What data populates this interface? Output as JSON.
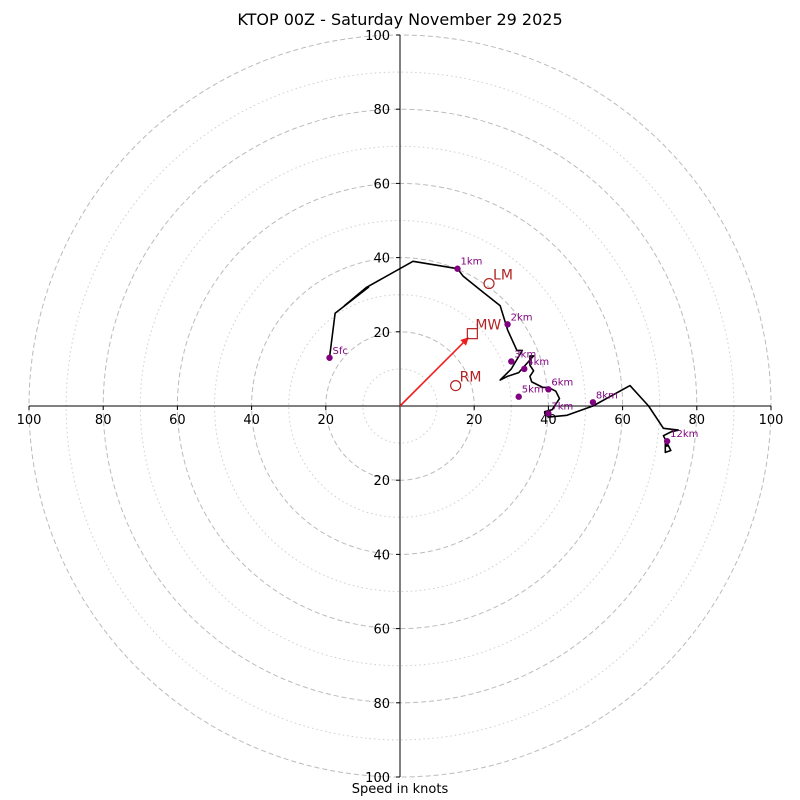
{
  "chart_data": {
    "type": "hodograph",
    "title": "KTOP 00Z - Saturday November 29 2025",
    "xlabel": "Speed in knots",
    "xlim": [
      -100,
      100
    ],
    "ylim": [
      -100,
      100
    ],
    "rings_major": [
      20,
      40,
      60,
      80,
      100
    ],
    "rings_minor": [
      10,
      30,
      50,
      70,
      90
    ],
    "x_ticks": [
      {
        "v": -100,
        "label": "100"
      },
      {
        "v": -80,
        "label": "80"
      },
      {
        "v": -60,
        "label": "60"
      },
      {
        "v": -40,
        "label": "40"
      },
      {
        "v": -20,
        "label": "20"
      },
      {
        "v": 20,
        "label": "20"
      },
      {
        "v": 40,
        "label": "40"
      },
      {
        "v": 60,
        "label": "60"
      },
      {
        "v": 80,
        "label": "80"
      },
      {
        "v": 100,
        "label": "100"
      }
    ],
    "y_ticks": [
      {
        "v": 100,
        "label": "100"
      },
      {
        "v": 80,
        "label": "80"
      },
      {
        "v": 60,
        "label": "60"
      },
      {
        "v": 40,
        "label": "40"
      },
      {
        "v": 20,
        "label": "20"
      },
      {
        "v": -20,
        "label": "20"
      },
      {
        "v": -40,
        "label": "40"
      },
      {
        "v": -60,
        "label": "60"
      },
      {
        "v": -80,
        "label": "80"
      },
      {
        "v": -100,
        "label": "100"
      }
    ],
    "trace": [
      [
        -19,
        13
      ],
      [
        -17.5,
        25
      ],
      [
        -8.5,
        32
      ],
      [
        -15,
        27
      ],
      [
        -9,
        32
      ],
      [
        3.5,
        39
      ],
      [
        15.5,
        37
      ],
      [
        17,
        35
      ],
      [
        22,
        31
      ],
      [
        27,
        27
      ],
      [
        29,
        20.5
      ],
      [
        31.5,
        15
      ],
      [
        33,
        15
      ],
      [
        30,
        10
      ],
      [
        27,
        7
      ],
      [
        29,
        8
      ],
      [
        32,
        9
      ],
      [
        36,
        13.5
      ],
      [
        35,
        13.5
      ],
      [
        35,
        11
      ],
      [
        36,
        9.5
      ],
      [
        35,
        8
      ],
      [
        35.5,
        6.5
      ],
      [
        38.5,
        5
      ],
      [
        40,
        5
      ],
      [
        42,
        4
      ],
      [
        43,
        2
      ],
      [
        41,
        -1
      ],
      [
        39,
        -1.5
      ],
      [
        39,
        -2
      ],
      [
        40,
        -3
      ],
      [
        45,
        -2.5
      ],
      [
        52,
        0
      ],
      [
        62,
        5.5
      ],
      [
        67,
        0
      ],
      [
        71,
        -6
      ],
      [
        75,
        -6.5
      ],
      [
        73,
        -7
      ],
      [
        71,
        -8
      ],
      [
        73,
        -12
      ],
      [
        71.5,
        -12.5
      ],
      [
        71.5,
        -9
      ],
      [
        72,
        -11
      ]
    ],
    "heights": [
      {
        "label": "Sfc",
        "u": -19,
        "v": 13
      },
      {
        "label": "1km",
        "u": 15.5,
        "v": 37
      },
      {
        "label": "2km",
        "u": 29,
        "v": 22
      },
      {
        "label": "3km",
        "u": 30,
        "v": 12
      },
      {
        "label": "4km",
        "u": 33.5,
        "v": 10
      },
      {
        "label": "5km",
        "u": 32,
        "v": 2.5
      },
      {
        "label": "6km",
        "u": 40,
        "v": 4.5
      },
      {
        "label": "7km",
        "u": 40,
        "v": -2
      },
      {
        "label": "8km",
        "u": 52,
        "v": 1
      },
      {
        "label": "12km",
        "u": 72,
        "v": -9.5
      }
    ],
    "storm_motion": {
      "mean_wind": {
        "label": "MW",
        "u": 19.5,
        "v": 19.5
      },
      "left_mover": {
        "label": "LM",
        "u": 24,
        "v": 33
      },
      "right_mover": {
        "label": "RM",
        "u": 15,
        "v": 5.5
      }
    },
    "colors": {
      "trace": "#000000",
      "height_points": "#800080",
      "storm_marks": "#b22222",
      "mean_wind_arrow": "#ee1c1c",
      "grid": "#bbbbbb"
    }
  }
}
